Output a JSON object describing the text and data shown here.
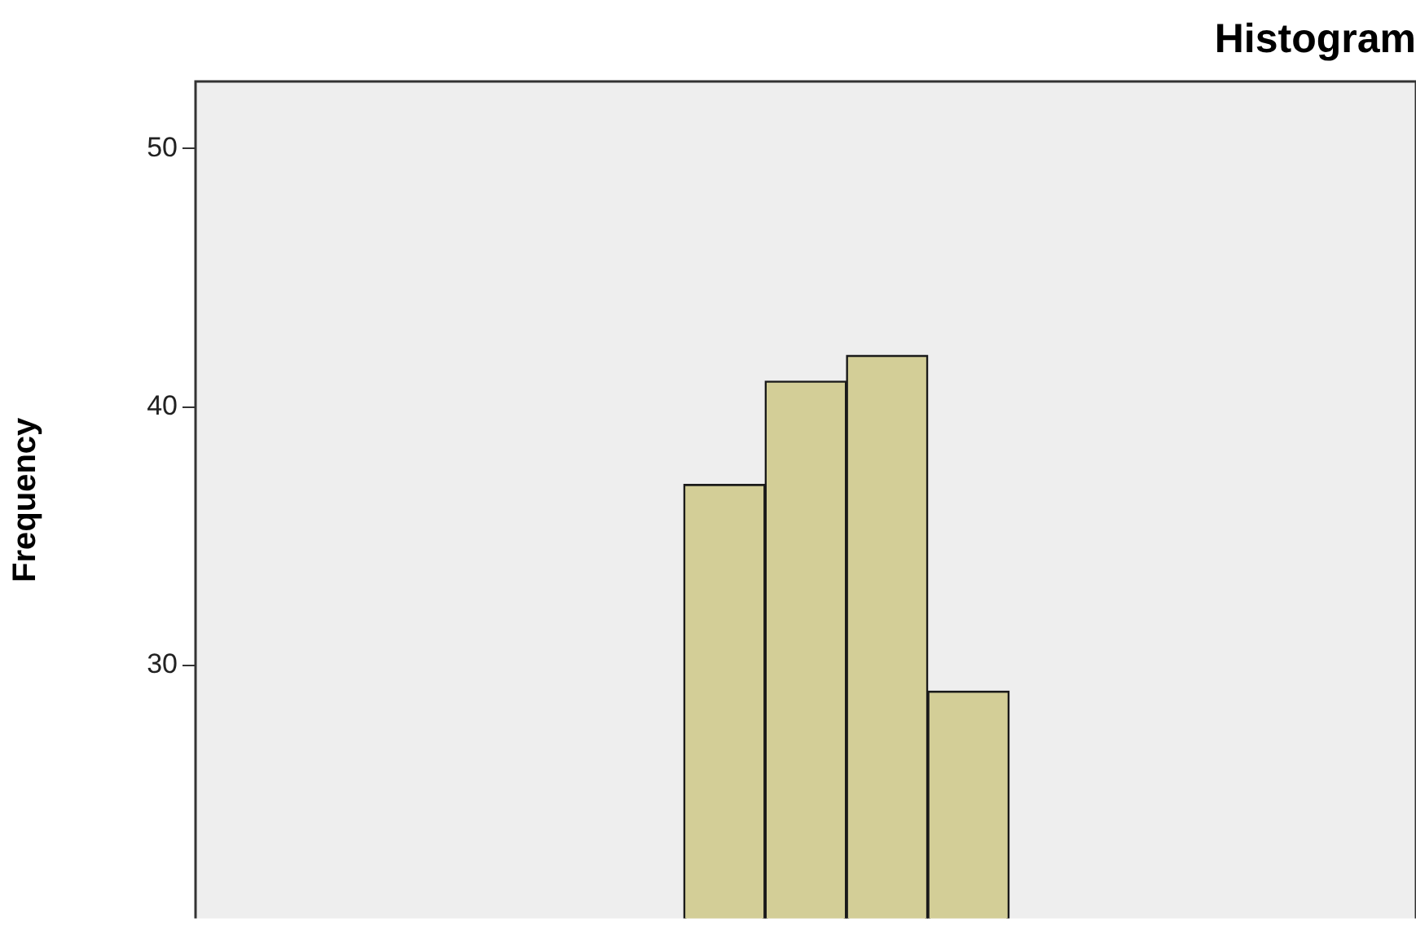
{
  "chart_data": {
    "type": "bar",
    "title": "Histogram",
    "ylabel": "Frequency",
    "categories": [
      null,
      null,
      null,
      null,
      null,
      null,
      null,
      null,
      null,
      null,
      null,
      null,
      null,
      null,
      null
    ],
    "values": [
      null,
      null,
      null,
      null,
      null,
      null,
      37,
      41,
      42,
      29,
      null,
      null,
      null,
      null,
      null
    ],
    "color": "#d3ce97",
    "ylim": [
      20.2,
      52.6
    ],
    "yticks": [
      30,
      40,
      50
    ],
    "grid": false,
    "legend": false,
    "tick_labels": "y"
  }
}
